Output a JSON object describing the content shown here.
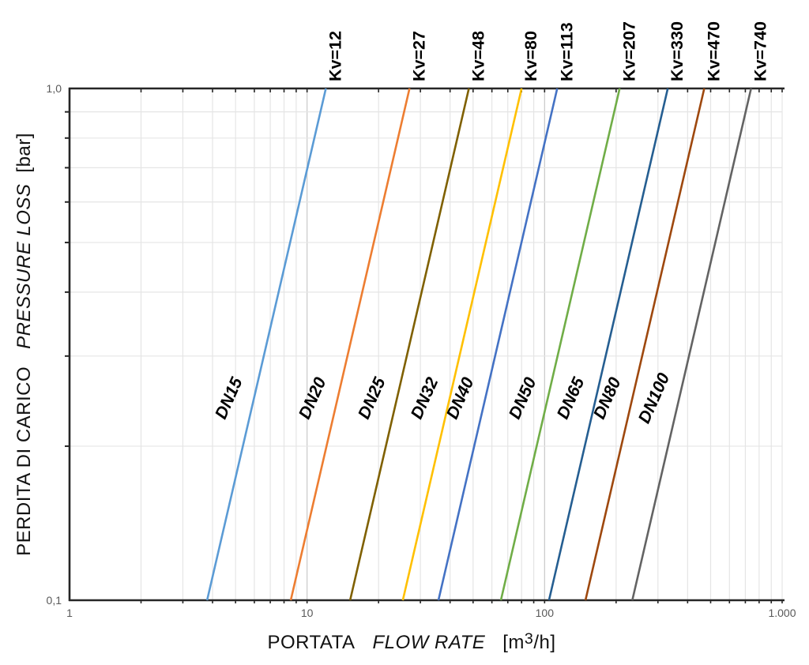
{
  "page": {
    "background": "#FFFFFF",
    "description_visible_text_only": true
  },
  "chart_data": {
    "type": "line",
    "scale": "log-log",
    "relation": "flow_rate = Kv * sqrt(pressure_loss)",
    "x_axis": {
      "title_it": "PORTATA",
      "title_en": "FLOW RATE",
      "unit_pre": "[m",
      "unit_sup": "3",
      "unit_post": "/h]",
      "min": 1,
      "max": 1000,
      "tick_values": [
        1,
        10,
        100,
        1000
      ],
      "tick_labels": [
        "1",
        "10",
        "100",
        "1.000"
      ],
      "grid": "minor-log"
    },
    "y_axis": {
      "title_it": "PERDITA DI CARICO",
      "title_en": "PRESSURE LOSS",
      "unit": "[bar]",
      "min": 0.1,
      "max": 1.0,
      "tick_values": [
        1.0,
        0.1
      ],
      "tick_labels": [
        "1,0",
        "0,1"
      ],
      "grid": "minor-log"
    },
    "series": [
      {
        "dn_label": "DN15",
        "kv_label": "Kv=12",
        "kv": 12,
        "flow_at_1bar": 12,
        "flow_at_0_1bar": 3.8,
        "color": "#5B9BD5"
      },
      {
        "dn_label": "DN20",
        "kv_label": "Kv=27",
        "kv": 27,
        "flow_at_1bar": 27,
        "flow_at_0_1bar": 8.5,
        "color": "#ED7D31"
      },
      {
        "dn_label": "DN25",
        "kv_label": "Kv=48",
        "kv": 48,
        "flow_at_1bar": 48,
        "flow_at_0_1bar": 15.2,
        "color": "#7F6000"
      },
      {
        "dn_label": "DN32",
        "kv_label": "Kv=80",
        "kv": 80,
        "flow_at_1bar": 80,
        "flow_at_0_1bar": 25.3,
        "color": "#FFC000"
      },
      {
        "dn_label": "DN40",
        "kv_label": "Kv=113",
        "kv": 113,
        "flow_at_1bar": 113,
        "flow_at_0_1bar": 35.7,
        "color": "#4472C4"
      },
      {
        "dn_label": "DN50",
        "kv_label": "Kv=207",
        "kv": 207,
        "flow_at_1bar": 207,
        "flow_at_0_1bar": 65.5,
        "color": "#70AD47"
      },
      {
        "dn_label": "DN65",
        "kv_label": "Kv=330",
        "kv": 330,
        "flow_at_1bar": 330,
        "flow_at_0_1bar": 104.4,
        "color": "#255E91"
      },
      {
        "dn_label": "DN80",
        "kv_label": "Kv=470",
        "kv": 470,
        "flow_at_1bar": 470,
        "flow_at_0_1bar": 148.6,
        "color": "#9E480E"
      },
      {
        "dn_label": "DN100",
        "kv_label": "Kv=740",
        "kv": 740,
        "flow_at_1bar": 740,
        "flow_at_0_1bar": 234.0,
        "color": "#636363"
      }
    ],
    "legend_position": "labels-on-lines",
    "colors": {
      "axis": "#262626",
      "grid_minor": "#E5E5E5",
      "grid_major": "#C9C9C9",
      "tick_label": "#595959",
      "series_label": "#000000"
    }
  }
}
